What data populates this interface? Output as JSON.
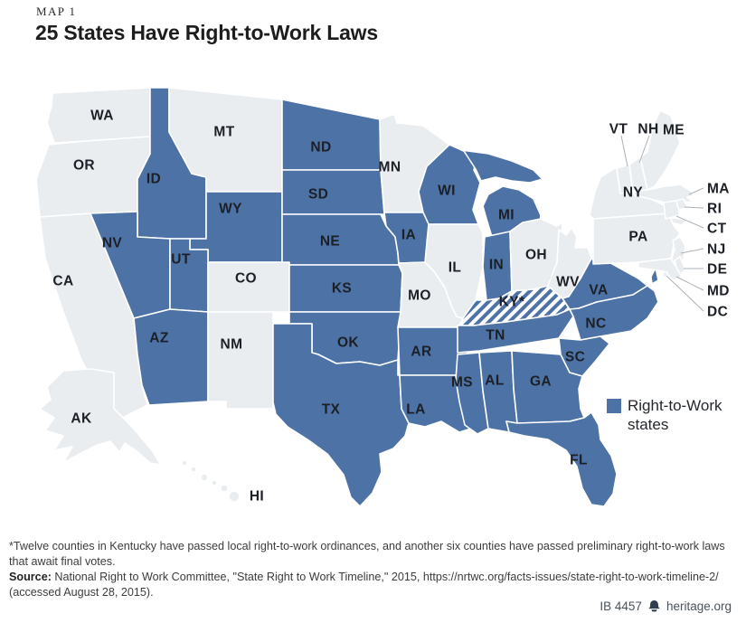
{
  "header": {
    "kicker": "MAP 1",
    "title": "25 States Have Right-to-Work Laws"
  },
  "legend": {
    "line1": "Right-to-Work",
    "line2": "states",
    "color": "#4c72a6"
  },
  "colors": {
    "rtw_fill": "#4c72a6",
    "default_fill": "#e9edf0",
    "border": "#ffffff",
    "label": "#1c2026"
  },
  "map": {
    "states": [
      {
        "abbr": "WA",
        "label": "WA",
        "rtw": false
      },
      {
        "abbr": "OR",
        "label": "OR",
        "rtw": false
      },
      {
        "abbr": "CA",
        "label": "CA",
        "rtw": false
      },
      {
        "abbr": "AK",
        "label": "AK",
        "rtw": false
      },
      {
        "abbr": "HI",
        "label": "HI",
        "rtw": false
      },
      {
        "abbr": "ID",
        "label": "ID",
        "rtw": true
      },
      {
        "abbr": "MT",
        "label": "MT",
        "rtw": false
      },
      {
        "abbr": "WY",
        "label": "WY",
        "rtw": true
      },
      {
        "abbr": "NV",
        "label": "NV",
        "rtw": true
      },
      {
        "abbr": "UT",
        "label": "UT",
        "rtw": true
      },
      {
        "abbr": "CO",
        "label": "CO",
        "rtw": false
      },
      {
        "abbr": "AZ",
        "label": "AZ",
        "rtw": true
      },
      {
        "abbr": "NM",
        "label": "NM",
        "rtw": false
      },
      {
        "abbr": "ND",
        "label": "ND",
        "rtw": true
      },
      {
        "abbr": "SD",
        "label": "SD",
        "rtw": true
      },
      {
        "abbr": "NE",
        "label": "NE",
        "rtw": true
      },
      {
        "abbr": "KS",
        "label": "KS",
        "rtw": true
      },
      {
        "abbr": "OK",
        "label": "OK",
        "rtw": true
      },
      {
        "abbr": "TX",
        "label": "TX",
        "rtw": true
      },
      {
        "abbr": "MN",
        "label": "MN",
        "rtw": false
      },
      {
        "abbr": "IA",
        "label": "IA",
        "rtw": true
      },
      {
        "abbr": "MO",
        "label": "MO",
        "rtw": false
      },
      {
        "abbr": "AR",
        "label": "AR",
        "rtw": true
      },
      {
        "abbr": "LA",
        "label": "LA",
        "rtw": true
      },
      {
        "abbr": "WI",
        "label": "WI",
        "rtw": true
      },
      {
        "abbr": "IL",
        "label": "IL",
        "rtw": false
      },
      {
        "abbr": "MS",
        "label": "MS",
        "rtw": true
      },
      {
        "abbr": "MI",
        "label": "MI",
        "rtw": true
      },
      {
        "abbr": "IN",
        "label": "IN",
        "rtw": true
      },
      {
        "abbr": "OH",
        "label": "OH",
        "rtw": false
      },
      {
        "abbr": "KY",
        "label": "KY*",
        "rtw": false,
        "hatched": true
      },
      {
        "abbr": "TN",
        "label": "TN",
        "rtw": true
      },
      {
        "abbr": "AL",
        "label": "AL",
        "rtw": true
      },
      {
        "abbr": "GA",
        "label": "GA",
        "rtw": true
      },
      {
        "abbr": "FL",
        "label": "FL",
        "rtw": true
      },
      {
        "abbr": "WV",
        "label": "WV",
        "rtw": false
      },
      {
        "abbr": "VA",
        "label": "VA",
        "rtw": true
      },
      {
        "abbr": "NC",
        "label": "NC",
        "rtw": true
      },
      {
        "abbr": "SC",
        "label": "SC",
        "rtw": true
      },
      {
        "abbr": "NY",
        "label": "NY",
        "rtw": false
      },
      {
        "abbr": "PA",
        "label": "PA",
        "rtw": false
      },
      {
        "abbr": "NJ",
        "label": "NJ",
        "rtw": false
      },
      {
        "abbr": "DE",
        "label": "DE",
        "rtw": false
      },
      {
        "abbr": "MD",
        "label": "MD",
        "rtw": false
      },
      {
        "abbr": "DC",
        "label": "DC",
        "rtw": false
      },
      {
        "abbr": "VT",
        "label": "VT",
        "rtw": false
      },
      {
        "abbr": "NH",
        "label": "NH",
        "rtw": false
      },
      {
        "abbr": "ME",
        "label": "ME",
        "rtw": false
      },
      {
        "abbr": "MA",
        "label": "MA",
        "rtw": false
      },
      {
        "abbr": "RI",
        "label": "RI",
        "rtw": false
      },
      {
        "abbr": "CT",
        "label": "CT",
        "rtw": false
      }
    ]
  },
  "footnotes": {
    "note": "*Twelve counties in Kentucky have passed local right-to-work ordinances, and another six counties have passed preliminary right-to-work laws that await final votes.",
    "source_label": "Source:",
    "source_text": "National Right to Work Committee, \"State Right to Work Timeline,\" 2015, https://nrtwc.org/facts-issues/state-right-to-work-timeline-2/ (accessed August 28, 2015)."
  },
  "footer": {
    "id_label": "IB 4457",
    "site": "heritage.org",
    "icon": "liberty-bell-icon"
  }
}
